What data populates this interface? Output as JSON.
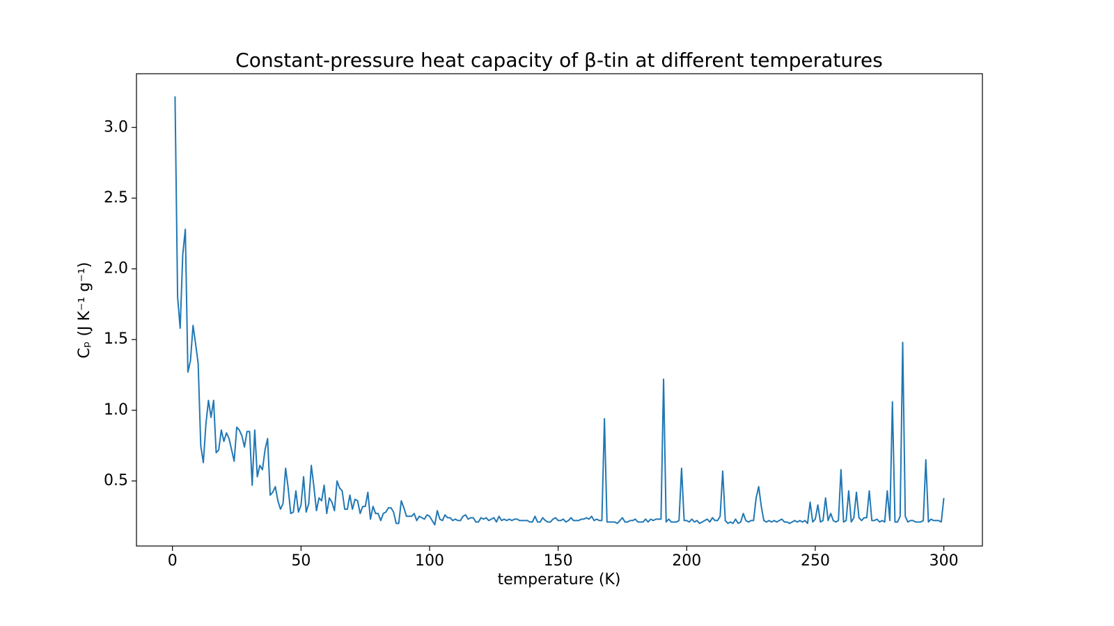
{
  "chart_data": {
    "type": "line",
    "title": "Constant-pressure heat capacity of β-tin at different temperatures",
    "xlabel": "temperature (K)",
    "ylabel": "Cₚ (J K⁻¹ g⁻¹)",
    "xlim": [
      -14,
      315
    ],
    "ylim": [
      0.04,
      3.38
    ],
    "xticks": [
      0,
      50,
      100,
      150,
      200,
      250,
      300
    ],
    "yticks": [
      0.5,
      {
        "value": 1,
        "label": "1.0"
      },
      1.5,
      {
        "value": 2,
        "label": "2.0"
      },
      2.5,
      {
        "value": 3,
        "label": "3.0"
      }
    ],
    "grid": false,
    "x": [
      1,
      2,
      3,
      4,
      5,
      6,
      7,
      8,
      9,
      10,
      11,
      12,
      13,
      14,
      15,
      16,
      17,
      18,
      19,
      20,
      21,
      22,
      23,
      24,
      25,
      26,
      27,
      28,
      29,
      30,
      31,
      32,
      33,
      34,
      35,
      36,
      37,
      38,
      39,
      40,
      41,
      42,
      43,
      44,
      45,
      46,
      47,
      48,
      49,
      50,
      51,
      52,
      53,
      54,
      55,
      56,
      57,
      58,
      59,
      60,
      61,
      62,
      63,
      64,
      65,
      66,
      67,
      68,
      69,
      70,
      71,
      72,
      73,
      74,
      75,
      76,
      77,
      78,
      79,
      80,
      81,
      82,
      83,
      84,
      85,
      86,
      87,
      88,
      89,
      90,
      91,
      92,
      93,
      94,
      95,
      96,
      97,
      98,
      99,
      100,
      101,
      102,
      103,
      104,
      105,
      106,
      107,
      108,
      109,
      110,
      111,
      112,
      113,
      114,
      115,
      116,
      117,
      118,
      119,
      120,
      121,
      122,
      123,
      124,
      125,
      126,
      127,
      128,
      129,
      130,
      131,
      132,
      133,
      134,
      135,
      136,
      137,
      138,
      139,
      140,
      141,
      142,
      143,
      144,
      145,
      146,
      147,
      148,
      149,
      150,
      151,
      152,
      153,
      154,
      155,
      156,
      157,
      158,
      159,
      160,
      161,
      162,
      163,
      164,
      165,
      166,
      167,
      168,
      169,
      170,
      171,
      172,
      173,
      174,
      175,
      176,
      177,
      178,
      179,
      180,
      181,
      182,
      183,
      184,
      185,
      186,
      187,
      188,
      189,
      190,
      191,
      192,
      193,
      194,
      195,
      196,
      197,
      198,
      199,
      200,
      201,
      202,
      203,
      204,
      205,
      206,
      207,
      208,
      209,
      210,
      211,
      212,
      213,
      214,
      215,
      216,
      217,
      218,
      219,
      220,
      221,
      222,
      223,
      224,
      225,
      226,
      227,
      228,
      229,
      230,
      231,
      232,
      233,
      234,
      235,
      236,
      237,
      238,
      239,
      240,
      241,
      242,
      243,
      244,
      245,
      246,
      247,
      248,
      249,
      250,
      251,
      252,
      253,
      254,
      255,
      256,
      257,
      258,
      259,
      260,
      261,
      262,
      263,
      264,
      265,
      266,
      267,
      268,
      269,
      270,
      271,
      272,
      273,
      274,
      275,
      276,
      277,
      278,
      279,
      280,
      281,
      282,
      283,
      284,
      285,
      286,
      287,
      288,
      289,
      290,
      291,
      292,
      293,
      294,
      295,
      296,
      297,
      298,
      299,
      300
    ],
    "series": [
      {
        "color": "#1f77b4",
        "values": [
          3.22,
          1.8,
          1.58,
          2.1,
          2.28,
          1.27,
          1.35,
          1.6,
          1.47,
          1.33,
          0.75,
          0.63,
          0.9,
          1.07,
          0.95,
          1.07,
          0.7,
          0.72,
          0.86,
          0.78,
          0.84,
          0.8,
          0.72,
          0.64,
          0.88,
          0.86,
          0.82,
          0.74,
          0.85,
          0.85,
          0.47,
          0.86,
          0.53,
          0.61,
          0.58,
          0.72,
          0.8,
          0.4,
          0.42,
          0.46,
          0.36,
          0.3,
          0.34,
          0.59,
          0.45,
          0.27,
          0.28,
          0.43,
          0.28,
          0.33,
          0.53,
          0.28,
          0.34,
          0.61,
          0.46,
          0.29,
          0.38,
          0.36,
          0.47,
          0.27,
          0.38,
          0.35,
          0.29,
          0.5,
          0.45,
          0.43,
          0.3,
          0.3,
          0.4,
          0.3,
          0.37,
          0.36,
          0.27,
          0.32,
          0.32,
          0.42,
          0.23,
          0.32,
          0.27,
          0.27,
          0.22,
          0.27,
          0.28,
          0.31,
          0.31,
          0.28,
          0.2,
          0.2,
          0.36,
          0.31,
          0.25,
          0.25,
          0.25,
          0.27,
          0.22,
          0.25,
          0.24,
          0.23,
          0.26,
          0.25,
          0.22,
          0.19,
          0.29,
          0.23,
          0.22,
          0.26,
          0.24,
          0.24,
          0.22,
          0.23,
          0.22,
          0.22,
          0.25,
          0.26,
          0.23,
          0.24,
          0.24,
          0.21,
          0.21,
          0.24,
          0.23,
          0.24,
          0.22,
          0.23,
          0.24,
          0.21,
          0.25,
          0.22,
          0.23,
          0.22,
          0.23,
          0.22,
          0.23,
          0.23,
          0.22,
          0.22,
          0.22,
          0.22,
          0.21,
          0.21,
          0.25,
          0.21,
          0.21,
          0.24,
          0.22,
          0.21,
          0.21,
          0.23,
          0.24,
          0.22,
          0.22,
          0.23,
          0.21,
          0.22,
          0.24,
          0.22,
          0.22,
          0.22,
          0.23,
          0.23,
          0.24,
          0.23,
          0.25,
          0.22,
          0.23,
          0.22,
          0.22,
          0.94,
          0.21,
          0.21,
          0.21,
          0.21,
          0.2,
          0.22,
          0.24,
          0.21,
          0.21,
          0.22,
          0.22,
          0.23,
          0.21,
          0.21,
          0.21,
          0.23,
          0.21,
          0.23,
          0.22,
          0.23,
          0.23,
          0.23,
          1.22,
          0.21,
          0.23,
          0.21,
          0.21,
          0.21,
          0.22,
          0.59,
          0.22,
          0.22,
          0.21,
          0.23,
          0.21,
          0.22,
          0.2,
          0.21,
          0.22,
          0.23,
          0.21,
          0.24,
          0.22,
          0.22,
          0.25,
          0.57,
          0.22,
          0.2,
          0.21,
          0.2,
          0.23,
          0.2,
          0.21,
          0.27,
          0.22,
          0.21,
          0.22,
          0.22,
          0.38,
          0.46,
          0.32,
          0.22,
          0.21,
          0.22,
          0.21,
          0.22,
          0.21,
          0.22,
          0.23,
          0.21,
          0.21,
          0.2,
          0.21,
          0.22,
          0.21,
          0.22,
          0.21,
          0.22,
          0.2,
          0.35,
          0.21,
          0.23,
          0.33,
          0.21,
          0.22,
          0.38,
          0.22,
          0.27,
          0.22,
          0.21,
          0.22,
          0.58,
          0.21,
          0.22,
          0.43,
          0.21,
          0.24,
          0.42,
          0.24,
          0.22,
          0.24,
          0.24,
          0.43,
          0.22,
          0.22,
          0.23,
          0.21,
          0.22,
          0.21,
          0.43,
          0.22,
          1.06,
          0.21,
          0.21,
          0.25,
          1.48,
          0.25,
          0.21,
          0.22,
          0.22,
          0.21,
          0.21,
          0.21,
          0.22,
          0.65,
          0.21,
          0.23,
          0.22,
          0.22,
          0.22,
          0.21,
          0.38
        ]
      }
    ]
  }
}
